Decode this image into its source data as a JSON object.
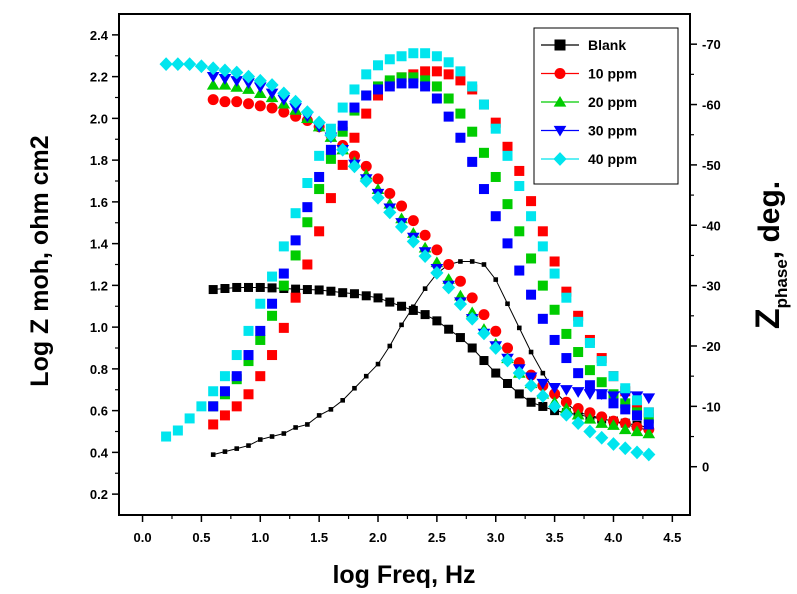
{
  "chart_data": {
    "type": "scatter",
    "xlabel": "log Freq, Hz",
    "ylabel_left": "Log Z moh, ohm cm2",
    "ylabel_right_main": "Z",
    "ylabel_right_sub": "phase",
    "ylabel_right_suffix": ", deg.",
    "xlim": [
      -0.2,
      4.65
    ],
    "ylim_left": [
      0.1,
      2.5
    ],
    "ylim_right": [
      -75,
      8
    ],
    "right_axis_inverted": true,
    "x_ticks": [
      0.0,
      0.5,
      1.0,
      1.5,
      2.0,
      2.5,
      3.0,
      3.5,
      4.0,
      4.5
    ],
    "x_tick_labels": [
      "0.0",
      "0.5",
      "1.0",
      "1.5",
      "2.0",
      "2.5",
      "3.0",
      "3.5",
      "4.0",
      "4.5"
    ],
    "y_left_ticks": [
      0.2,
      0.4,
      0.6,
      0.8,
      1.0,
      1.2,
      1.4,
      1.6,
      1.8,
      2.0,
      2.2,
      2.4
    ],
    "y_left_tick_labels": [
      "0.2",
      "0.4",
      "0.6",
      "0.8",
      "1.0",
      "1.2",
      "1.4",
      "1.6",
      "1.8",
      "2.0",
      "2.2",
      "2.4"
    ],
    "y_right_ticks": [
      0,
      -10,
      -20,
      -30,
      -40,
      -50,
      -60,
      -70
    ],
    "y_right_tick_labels": [
      "0",
      "-10",
      "-20",
      "-30",
      "-40",
      "-50",
      "-60",
      "-70"
    ],
    "legend_position": "top-right",
    "grid": false,
    "series": [
      {
        "name": "Blank",
        "color": "#000000",
        "marker": "square",
        "line": true,
        "logZ": {
          "x": [
            0.6,
            0.7,
            0.8,
            0.9,
            1.0,
            1.1,
            1.2,
            1.3,
            1.4,
            1.5,
            1.6,
            1.7,
            1.8,
            1.9,
            2.0,
            2.1,
            2.2,
            2.3,
            2.4,
            2.5,
            2.6,
            2.7,
            2.8,
            2.9,
            3.0,
            3.1,
            3.2,
            3.3,
            3.4,
            3.5,
            3.6,
            3.7,
            3.8,
            3.9,
            4.0,
            4.1,
            4.2,
            4.3
          ],
          "y": [
            1.18,
            1.185,
            1.19,
            1.19,
            1.19,
            1.188,
            1.185,
            1.182,
            1.18,
            1.178,
            1.172,
            1.165,
            1.16,
            1.15,
            1.14,
            1.12,
            1.1,
            1.08,
            1.06,
            1.03,
            0.99,
            0.95,
            0.9,
            0.84,
            0.78,
            0.73,
            0.68,
            0.64,
            0.62,
            0.6,
            0.59,
            0.58,
            0.57,
            0.56,
            0.55,
            0.54,
            0.53,
            0.52
          ]
        },
        "phase": {
          "x": [
            0.6,
            0.7,
            0.8,
            0.9,
            1.0,
            1.1,
            1.2,
            1.3,
            1.4,
            1.5,
            1.6,
            1.7,
            1.8,
            1.9,
            2.0,
            2.1,
            2.2,
            2.3,
            2.4,
            2.5,
            2.6,
            2.7,
            2.8,
            2.9,
            3.0,
            3.1,
            3.2,
            3.3,
            3.4,
            3.5,
            3.6,
            3.7,
            3.8,
            3.9,
            4.0,
            4.1,
            4.2,
            4.3
          ],
          "y": [
            -2,
            -2.5,
            -3,
            -3.5,
            -4.5,
            -5,
            -5.5,
            -6.5,
            -7,
            -8.5,
            -9.5,
            -11,
            -13,
            -15,
            -17,
            -20,
            -23.5,
            -26.5,
            -29.5,
            -32,
            -33.5,
            -34,
            -34,
            -33.5,
            -31,
            -27,
            -23,
            -19,
            -15.5,
            -12.5,
            -10.5,
            -9,
            -8.5,
            -8,
            -7.5,
            -7,
            -6.5,
            -6
          ]
        }
      },
      {
        "name": "10 ppm",
        "color": "#ff0000",
        "marker": "circle",
        "line": false,
        "logZ": {
          "x": [
            0.6,
            0.7,
            0.8,
            0.9,
            1.0,
            1.1,
            1.2,
            1.3,
            1.4,
            1.5,
            1.6,
            1.7,
            1.8,
            1.9,
            2.0,
            2.1,
            2.2,
            2.3,
            2.4,
            2.5,
            2.6,
            2.7,
            2.8,
            2.9,
            3.0,
            3.1,
            3.2,
            3.3,
            3.4,
            3.5,
            3.6,
            3.7,
            3.8,
            3.9,
            4.0,
            4.1,
            4.2,
            4.3
          ],
          "y": [
            2.09,
            2.08,
            2.08,
            2.07,
            2.06,
            2.05,
            2.03,
            2.01,
            1.99,
            1.96,
            1.92,
            1.87,
            1.82,
            1.77,
            1.71,
            1.64,
            1.58,
            1.51,
            1.44,
            1.37,
            1.3,
            1.22,
            1.14,
            1.06,
            0.98,
            0.9,
            0.83,
            0.77,
            0.72,
            0.68,
            0.64,
            0.61,
            0.59,
            0.57,
            0.55,
            0.54,
            0.52,
            0.51
          ]
        },
        "phase": {
          "x": [
            0.6,
            0.7,
            0.8,
            0.9,
            1.0,
            1.1,
            1.2,
            1.3,
            1.4,
            1.5,
            1.6,
            1.7,
            1.8,
            1.9,
            2.0,
            2.1,
            2.2,
            2.3,
            2.4,
            2.5,
            2.6,
            2.7,
            2.8,
            2.9,
            3.0,
            3.1,
            3.2,
            3.3,
            3.4,
            3.5,
            3.6,
            3.7,
            3.8,
            3.9,
            4.0,
            4.1,
            4.2,
            4.3
          ],
          "y": [
            -7,
            -8.5,
            -10,
            -12,
            -15,
            -18.5,
            -23,
            -28,
            -33.5,
            -39,
            -44.5,
            -50,
            -54.5,
            -58.5,
            -61.5,
            -63.5,
            -64.5,
            -65,
            -65.5,
            -65.5,
            -65,
            -64,
            -62.5,
            -60,
            -57,
            -53,
            -49,
            -44,
            -39,
            -34,
            -29,
            -25,
            -21,
            -18,
            -15,
            -12.5,
            -10.5,
            -9
          ]
        }
      },
      {
        "name": "20 ppm",
        "color": "#00cc00",
        "marker": "triangle-up",
        "line": false,
        "logZ": {
          "x": [
            0.6,
            0.7,
            0.8,
            0.9,
            1.0,
            1.1,
            1.2,
            1.3,
            1.4,
            1.5,
            1.6,
            1.7,
            1.8,
            1.9,
            2.0,
            2.1,
            2.2,
            2.3,
            2.4,
            2.5,
            2.6,
            2.7,
            2.8,
            2.9,
            3.0,
            3.1,
            3.2,
            3.3,
            3.4,
            3.5,
            3.6,
            3.7,
            3.8,
            3.9,
            4.0,
            4.1,
            4.2,
            4.3
          ],
          "y": [
            2.16,
            2.16,
            2.15,
            2.14,
            2.12,
            2.1,
            2.07,
            2.04,
            2.0,
            1.96,
            1.91,
            1.85,
            1.79,
            1.73,
            1.66,
            1.59,
            1.52,
            1.45,
            1.38,
            1.31,
            1.23,
            1.15,
            1.07,
            0.99,
            0.92,
            0.85,
            0.78,
            0.73,
            0.68,
            0.64,
            0.61,
            0.58,
            0.56,
            0.54,
            0.53,
            0.51,
            0.5,
            0.49
          ]
        },
        "phase": {
          "x": [
            0.6,
            0.7,
            0.8,
            0.9,
            1.0,
            1.1,
            1.2,
            1.3,
            1.4,
            1.5,
            1.6,
            1.7,
            1.8,
            1.9,
            2.0,
            2.1,
            2.2,
            2.3,
            2.4,
            2.5,
            2.6,
            2.7,
            2.8,
            2.9,
            3.0,
            3.1,
            3.2,
            3.3,
            3.4,
            3.5,
            3.6,
            3.7,
            3.8,
            3.9,
            4.0,
            4.1,
            4.2,
            4.3
          ],
          "y": [
            -10,
            -12,
            -14.5,
            -17.5,
            -21,
            -25,
            -30,
            -35,
            -40.5,
            -46,
            -51,
            -55.5,
            -59,
            -61.5,
            -63,
            -64,
            -64.5,
            -64.5,
            -64,
            -63,
            -61,
            -58.5,
            -55.5,
            -52,
            -48,
            -43.5,
            -39,
            -34.5,
            -30,
            -26,
            -22,
            -19,
            -16,
            -14,
            -12,
            -10.5,
            -9,
            -8
          ]
        }
      },
      {
        "name": "30 ppm",
        "color": "#0000ff",
        "marker": "triangle-down",
        "line": false,
        "logZ": {
          "x": [
            0.6,
            0.7,
            0.8,
            0.9,
            1.0,
            1.1,
            1.2,
            1.3,
            1.4,
            1.5,
            1.6,
            1.7,
            1.8,
            1.9,
            2.0,
            2.1,
            2.2,
            2.3,
            2.4,
            2.5,
            2.6,
            2.7,
            2.8,
            2.9,
            3.0,
            3.1,
            3.2,
            3.3,
            3.4,
            3.5,
            3.6,
            3.7,
            3.8,
            3.9,
            4.0,
            4.1,
            4.2,
            4.3
          ],
          "y": [
            2.2,
            2.19,
            2.18,
            2.17,
            2.15,
            2.12,
            2.09,
            2.05,
            2.01,
            1.96,
            1.91,
            1.85,
            1.78,
            1.71,
            1.64,
            1.57,
            1.5,
            1.43,
            1.36,
            1.28,
            1.2,
            1.12,
            1.04,
            0.97,
            0.91,
            0.85,
            0.8,
            0.76,
            0.73,
            0.71,
            0.7,
            0.69,
            0.68,
            0.68,
            0.67,
            0.67,
            0.67,
            0.66
          ]
        },
        "phase": {
          "x": [
            0.6,
            0.7,
            0.8,
            0.9,
            1.0,
            1.1,
            1.2,
            1.3,
            1.4,
            1.5,
            1.6,
            1.7,
            1.8,
            1.9,
            2.0,
            2.1,
            2.2,
            2.3,
            2.4,
            2.5,
            2.6,
            2.7,
            2.8,
            2.9,
            3.0,
            3.1,
            3.2,
            3.3,
            3.4,
            3.5,
            3.6,
            3.7,
            3.8,
            3.9,
            4.0,
            4.1,
            4.2,
            4.3
          ],
          "y": [
            -10,
            -12.5,
            -15,
            -18.5,
            -22.5,
            -27,
            -32,
            -37.5,
            -43,
            -48,
            -52.5,
            -56.5,
            -59.5,
            -61.5,
            -62.5,
            -63,
            -63.5,
            -63.5,
            -63,
            -61,
            -58,
            -54.5,
            -50.5,
            -46,
            -41.5,
            -37,
            -32.5,
            -28.5,
            -24.5,
            -21,
            -18,
            -15.5,
            -13.5,
            -12,
            -10.5,
            -9.5,
            -8.5,
            -7
          ]
        }
      },
      {
        "name": "40 ppm",
        "color": "#00e5ee",
        "marker": "diamond",
        "line": false,
        "logZ": {
          "x": [
            0.2,
            0.3,
            0.4,
            0.5,
            0.6,
            0.7,
            0.8,
            0.9,
            1.0,
            1.1,
            1.2,
            1.3,
            1.4,
            1.5,
            1.6,
            1.7,
            1.8,
            1.9,
            2.0,
            2.1,
            2.2,
            2.3,
            2.4,
            2.5,
            2.6,
            2.7,
            2.8,
            2.9,
            3.0,
            3.1,
            3.2,
            3.3,
            3.4,
            3.5,
            3.6,
            3.7,
            3.8,
            3.9,
            4.0,
            4.1,
            4.2,
            4.3
          ],
          "y": [
            2.26,
            2.26,
            2.26,
            2.25,
            2.24,
            2.23,
            2.22,
            2.2,
            2.18,
            2.16,
            2.12,
            2.08,
            2.03,
            1.98,
            1.92,
            1.85,
            1.77,
            1.7,
            1.62,
            1.55,
            1.48,
            1.41,
            1.34,
            1.26,
            1.19,
            1.11,
            1.04,
            0.97,
            0.9,
            0.84,
            0.78,
            0.72,
            0.67,
            0.62,
            0.58,
            0.54,
            0.5,
            0.47,
            0.44,
            0.42,
            0.4,
            0.39
          ]
        },
        "phase": {
          "x": [
            0.2,
            0.3,
            0.4,
            0.5,
            0.6,
            0.7,
            0.8,
            0.9,
            1.0,
            1.1,
            1.2,
            1.3,
            1.4,
            1.5,
            1.6,
            1.7,
            1.8,
            1.9,
            2.0,
            2.1,
            2.2,
            2.3,
            2.4,
            2.5,
            2.6,
            2.7,
            2.8,
            2.9,
            3.0,
            3.1,
            3.2,
            3.3,
            3.4,
            3.5,
            3.6,
            3.7,
            3.8,
            3.9,
            4.0,
            4.1,
            4.2,
            4.3
          ],
          "y": [
            -5,
            -6,
            -8,
            -10,
            -12.5,
            -15,
            -18.5,
            -22.5,
            -27,
            -31.5,
            -36.5,
            -42,
            -47,
            -51.5,
            -56,
            -59.5,
            -62.5,
            -65,
            -66.5,
            -67.5,
            -68,
            -68.5,
            -68.5,
            -68,
            -67,
            -65.5,
            -63,
            -60,
            -56,
            -51.5,
            -46.5,
            -41.5,
            -36.5,
            -32,
            -28,
            -24,
            -20.5,
            -17.5,
            -15,
            -13,
            -11,
            -9
          ]
        }
      }
    ]
  }
}
